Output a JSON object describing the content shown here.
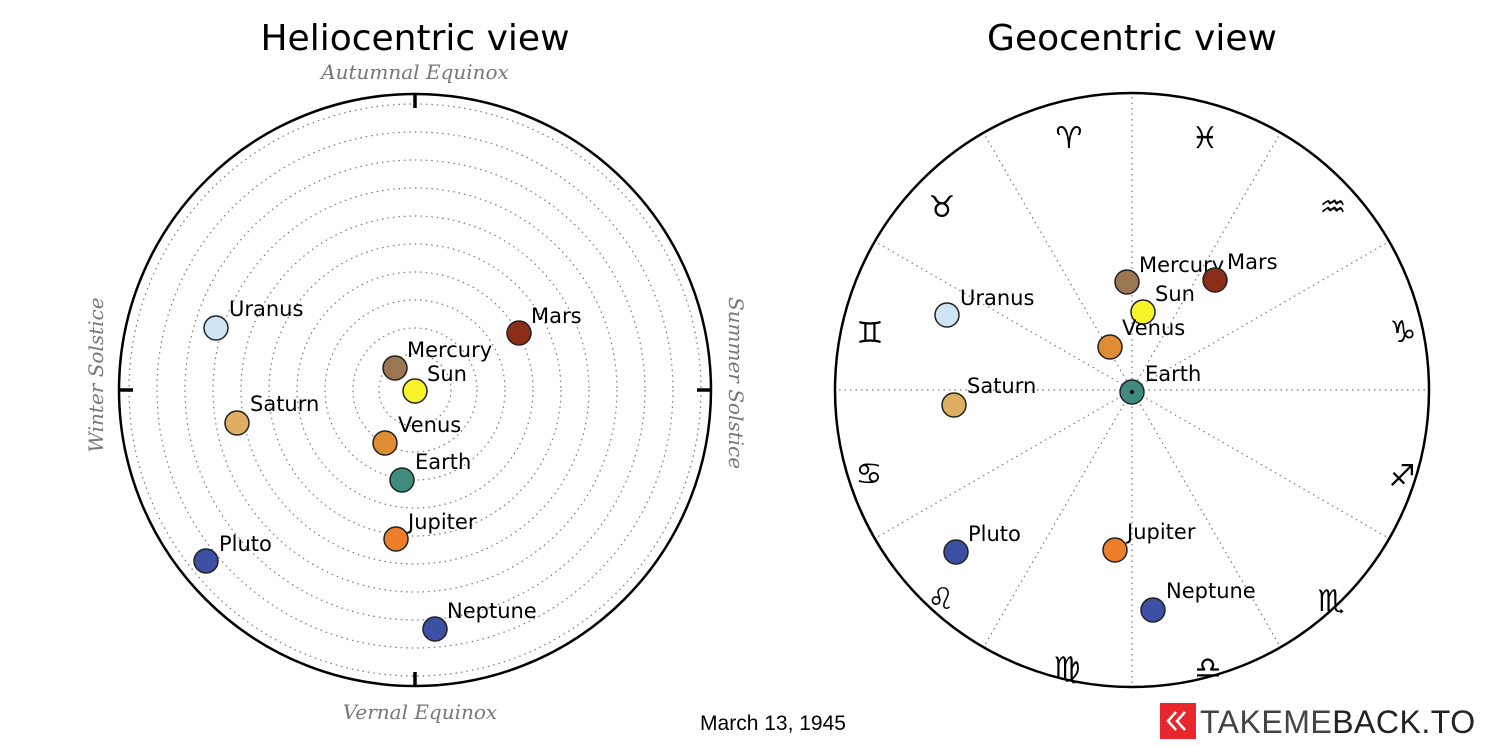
{
  "heliocentric": {
    "title": "Heliocentric view",
    "labels": {
      "top": "Autumnal Equinox",
      "right": "Summer Solstice",
      "bottom": "Vernal Equinox",
      "left": "Winter Solstice"
    },
    "planets": [
      {
        "name": "Mercury",
        "color": "#9b7653"
      },
      {
        "name": "Sun",
        "color": "#f9f32a"
      },
      {
        "name": "Venus",
        "color": "#e08c35"
      },
      {
        "name": "Earth",
        "color": "#3f8c7f"
      },
      {
        "name": "Mars",
        "color": "#8c2e17"
      },
      {
        "name": "Jupiter",
        "color": "#ef7e2a"
      },
      {
        "name": "Saturn",
        "color": "#dfae62"
      },
      {
        "name": "Uranus",
        "color": "#cfe4f4"
      },
      {
        "name": "Neptune",
        "color": "#3d4fa3"
      },
      {
        "name": "Pluto",
        "color": "#3d4fa3"
      }
    ]
  },
  "geocentric": {
    "title": "Geocentric view",
    "zodiac": [
      {
        "symbol": "♓",
        "name": "pisces"
      },
      {
        "symbol": "♒",
        "name": "aquarius"
      },
      {
        "symbol": "♑",
        "name": "capricorn"
      },
      {
        "symbol": "♐",
        "name": "sagittarius"
      },
      {
        "symbol": "♏",
        "name": "scorpio"
      },
      {
        "symbol": "♎",
        "name": "libra"
      },
      {
        "symbol": "♍",
        "name": "virgo"
      },
      {
        "symbol": "♌",
        "name": "leo"
      },
      {
        "symbol": "♋",
        "name": "cancer"
      },
      {
        "symbol": "♊",
        "name": "gemini"
      },
      {
        "symbol": "♉",
        "name": "taurus"
      },
      {
        "symbol": "♈",
        "name": "aries"
      }
    ],
    "planets": [
      {
        "name": "Mercury",
        "color": "#9b7653"
      },
      {
        "name": "Mars",
        "color": "#8c2e17"
      },
      {
        "name": "Sun",
        "color": "#f9f32a"
      },
      {
        "name": "Venus",
        "color": "#e08c35"
      },
      {
        "name": "Earth",
        "color": "#3f8c7f"
      },
      {
        "name": "Uranus",
        "color": "#cfe4f4"
      },
      {
        "name": "Saturn",
        "color": "#dfae62"
      },
      {
        "name": "Pluto",
        "color": "#3d4fa3"
      },
      {
        "name": "Jupiter",
        "color": "#ef7e2a"
      },
      {
        "name": "Neptune",
        "color": "#3d4fa3"
      }
    ]
  },
  "footer": {
    "date": "March 13, 1945",
    "brand_left": "TAKEME",
    "brand_right": "BACK.TO",
    "brand_color": "#e8262b"
  }
}
